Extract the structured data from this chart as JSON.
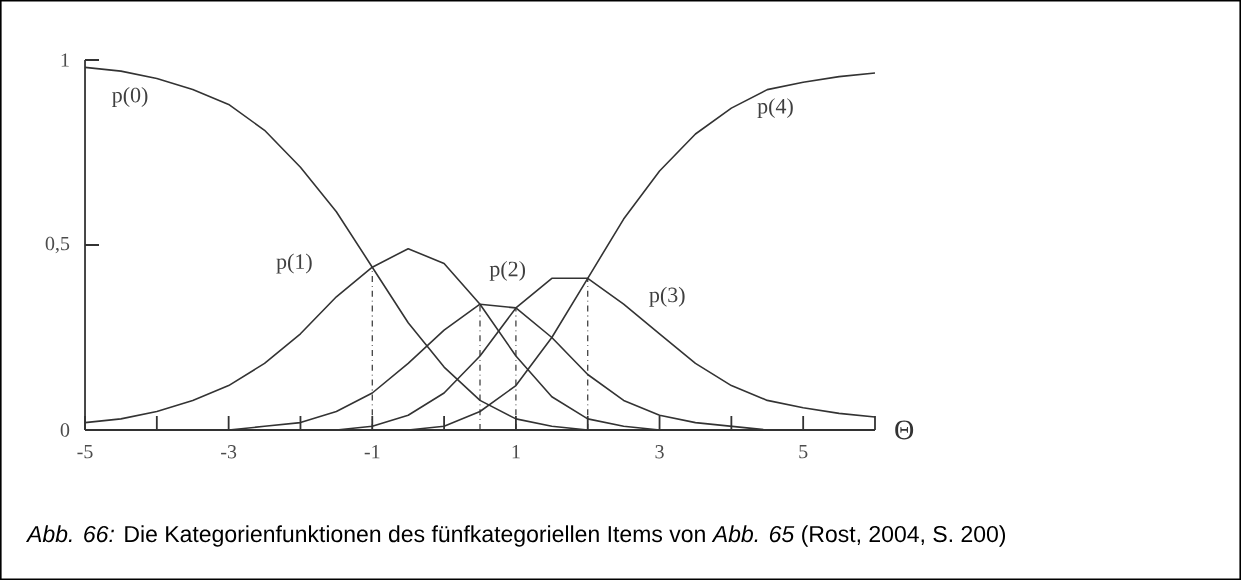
{
  "chart_data": {
    "type": "line",
    "xlabel": "Θ",
    "x": [
      -5,
      -4.5,
      -4,
      -3.5,
      -3,
      -2.5,
      -2,
      -1.5,
      -1,
      -0.5,
      0,
      0.5,
      1,
      1.5,
      2,
      2.5,
      3,
      3.5,
      4,
      4.5,
      5,
      5.5,
      6
    ],
    "series": [
      {
        "color": "#333333",
        "values": [
          0.98,
          0.97,
          0.95,
          0.92,
          0.88,
          0.81,
          0.71,
          0.59,
          0.44,
          0.29,
          0.17,
          0.08,
          0.03,
          0.01,
          0,
          0,
          0,
          0,
          0,
          0,
          0,
          0,
          0
        ]
      },
      {
        "color": "#333333",
        "values": [
          0.02,
          0.03,
          0.05,
          0.08,
          0.12,
          0.18,
          0.26,
          0.36,
          0.44,
          0.49,
          0.45,
          0.34,
          0.2,
          0.09,
          0.03,
          0.01,
          0,
          0,
          0,
          0,
          0,
          0,
          0
        ]
      },
      {
        "color": "#333333",
        "values": [
          0,
          0,
          0,
          0,
          0,
          0.01,
          0.02,
          0.05,
          0.1,
          0.18,
          0.27,
          0.34,
          0.33,
          0.25,
          0.15,
          0.08,
          0.04,
          0.02,
          0.01,
          0,
          0,
          0,
          0
        ]
      },
      {
        "color": "#333333",
        "values": [
          0,
          0,
          0,
          0,
          0,
          0,
          0,
          0,
          0.01,
          0.04,
          0.1,
          0.2,
          0.33,
          0.41,
          0.41,
          0.34,
          0.26,
          0.18,
          0.12,
          0.08,
          0.06,
          0.045,
          0.035
        ]
      },
      {
        "color": "#333333",
        "values": [
          0,
          0,
          0,
          0,
          0,
          0,
          0,
          0,
          0,
          0,
          0.01,
          0.05,
          0.12,
          0.25,
          0.41,
          0.57,
          0.7,
          0.8,
          0.87,
          0.92,
          0.94,
          0.955,
          0.965
        ]
      }
    ],
    "xlim": [
      -5,
      6
    ],
    "xticks": [
      -5,
      {
        "value": -4,
        "label": null
      },
      -3,
      {
        "value": -2,
        "label": null
      },
      -1,
      {
        "value": 0,
        "label": null
      },
      1,
      {
        "value": 2,
        "label": null
      },
      3,
      {
        "value": 4,
        "label": null
      },
      5,
      {
        "value": 6,
        "label": null
      }
    ],
    "ylim": [
      0,
      1
    ],
    "yticks": [
      0,
      {
        "value": 0.5,
        "label": "0,5"
      },
      1
    ],
    "marker": "none",
    "line_style": "solid",
    "ref_lines": [
      {
        "axis": "x",
        "value": -1,
        "line_style": "dashed",
        "color": "#333333"
      },
      {
        "axis": "x",
        "value": 0.5,
        "line_style": "dashed",
        "color": "#333333"
      },
      {
        "axis": "x",
        "value": 1,
        "line_style": "dashed",
        "color": "#333333"
      },
      {
        "axis": "x",
        "value": 2,
        "line_style": "dashed",
        "color": "#333333"
      }
    ],
    "annotations": [
      "p(0)",
      "p(1)",
      "p(2)",
      "p(3)",
      "p(4)",
      "*Abb. 66:* Die Kategorienfunktionen des fünfkategoriellen Items von *Abb. 65* (Rost, 2004, S. 200)"
    ]
  }
}
